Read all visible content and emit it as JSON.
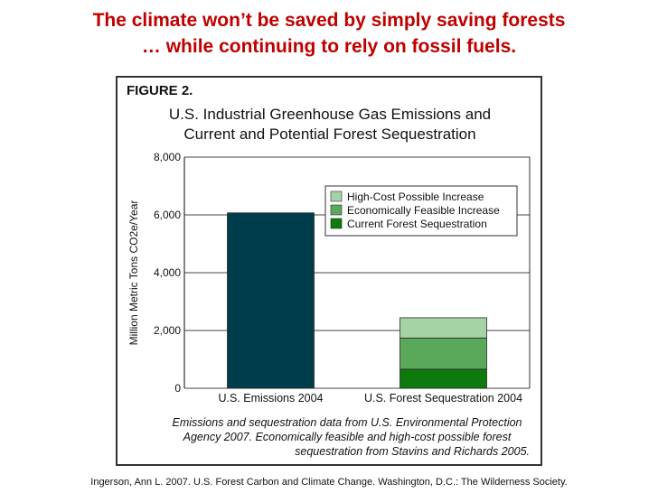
{
  "headline": {
    "line1": "The climate won’t be saved by simply saving forests",
    "line2": "… while continuing to rely on fossil fuels."
  },
  "figure": {
    "label": "FIGURE 2.",
    "title_line1": "U.S. Industrial Greenhouse Gas Emissions and",
    "title_line2": "Current and Potential Forest Sequestration",
    "note_line1": "Emissions and sequestration data from U.S. Environmental Protection",
    "note_line2": "Agency 2007. Economically feasible and high-cost possible forest",
    "note_line3": "sequestration from Stavins and Richards 2005."
  },
  "credit": "Ingerson, Ann L. 2007. U.S. Forest Carbon and Climate Change. Washington, D.C.: The Wilderness Society.",
  "chart_data": {
    "type": "bar",
    "stacked": true,
    "title": "U.S. Industrial Greenhouse Gas Emissions and Current and Potential Forest Sequestration",
    "ylabel": "Million Metric Tons CO2e/Year",
    "xlabel": "",
    "ylim": [
      0,
      8000
    ],
    "yticks": [
      0,
      2000,
      4000,
      6000,
      8000
    ],
    "ytick_labels": [
      "0",
      "2,000",
      "4,000",
      "6,000",
      "8,000"
    ],
    "grid": true,
    "legend_position": "top-right",
    "categories": [
      "U.S. Emissions 2004",
      "U.S. Forest Sequestration 2004"
    ],
    "series": [
      {
        "name": "U.S. Emissions",
        "color": "#003d4c",
        "values": [
          6070,
          0
        ]
      },
      {
        "name": "Current Forest Sequestration",
        "color": "#0d7a0d",
        "values": [
          0,
          660
        ]
      },
      {
        "name": "Economically Feasible Increase",
        "color": "#5aa85a",
        "values": [
          0,
          1080
        ]
      },
      {
        "name": "High-Cost Possible Increase",
        "color": "#a6d3a6",
        "values": [
          0,
          700
        ]
      }
    ],
    "legend": [
      {
        "label": "High-Cost Possible Increase",
        "color": "#a6d3a6"
      },
      {
        "label": "Economically Feasible Increase",
        "color": "#5aa85a"
      },
      {
        "label": "Current Forest Sequestration",
        "color": "#0d7a0d"
      }
    ]
  }
}
